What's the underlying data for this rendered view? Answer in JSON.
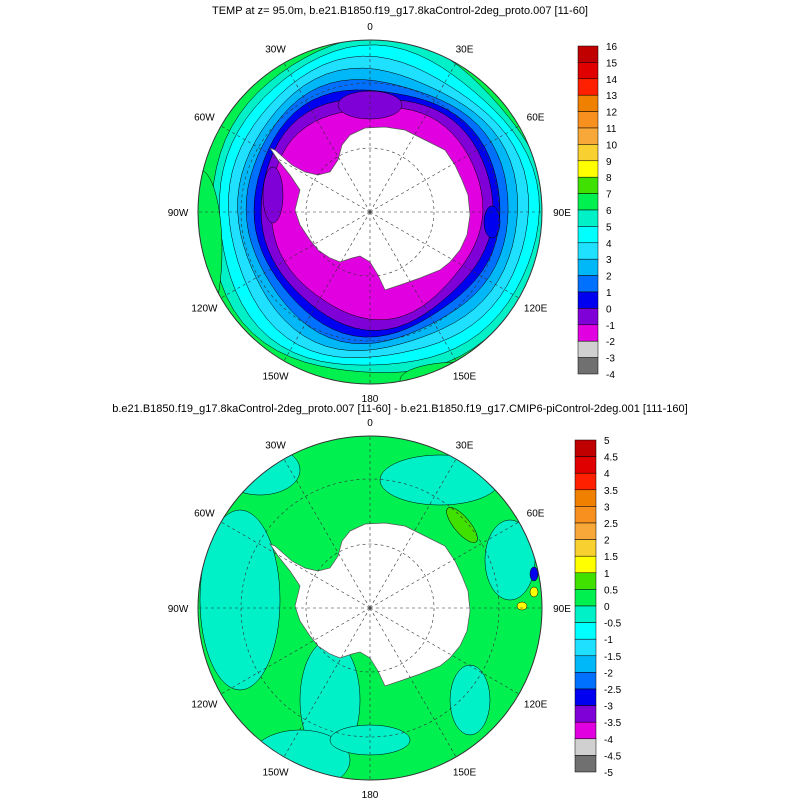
{
  "panels": [
    {
      "title": "TEMP at z=  95.0m, b.e21.B1850.f19_g17.8kaControl-2deg_proto.007 [11-60]",
      "colorbar_labels": [
        "16",
        "15",
        "14",
        "13",
        "12",
        "11",
        "10",
        "9",
        "8",
        "7",
        "6",
        "5",
        "4",
        "3",
        "2",
        "1",
        "0",
        "-1",
        "-2",
        "-3",
        "-4"
      ],
      "field": "temperature",
      "rings": [
        "#00f050",
        "#00f0c8",
        "#00ffff",
        "#20e0ff",
        "#00b8f8",
        "#0070ff",
        "#0000f0",
        "#8000d8",
        "#e000e0"
      ],
      "patches": [
        {
          "color": "#00f050",
          "where": "west-edge"
        },
        {
          "color": "#40e000",
          "where": "southeast-edge"
        },
        {
          "color": "#8000d8",
          "where": "weddell-gyre"
        }
      ]
    },
    {
      "title": "b.e21.B1850.f19_g17.8kaControl-2deg_proto.007 [11-60] - b.e21.B1850.f19_g17.CMIP6-piControl-2deg.001 [111-160]",
      "colorbar_labels": [
        "5",
        "4.5",
        "4",
        "3.5",
        "3",
        "2.5",
        "2",
        "1.5",
        "1",
        "0.5",
        "0",
        "-0.5",
        "-1",
        "-1.5",
        "-2",
        "-2.5",
        "-3",
        "-3.5",
        "-4",
        "-4.5",
        "-5"
      ],
      "field": "difference",
      "rings": [
        "#00f050"
      ],
      "patches": [
        {
          "color": "#00f0c8",
          "where": "scattered"
        },
        {
          "color": "#40e000",
          "where": "east-indian"
        },
        {
          "color": "#0000f0",
          "where": "kerguelen"
        }
      ]
    }
  ],
  "colorbar_colors": [
    "#c00000",
    "#e00000",
    "#ff2000",
    "#f08000",
    "#f89020",
    "#f8a838",
    "#f8d030",
    "#ffff00",
    "#40e000",
    "#00f050",
    "#00f0c8",
    "#00ffff",
    "#20e0ff",
    "#00b8f8",
    "#0070ff",
    "#0000f0",
    "#8000d8",
    "#e000e0",
    "#d0d0d0",
    "#707070"
  ],
  "longitude_labels": [
    "0",
    "30E",
    "60E",
    "90E",
    "120E",
    "150E",
    "180",
    "150W",
    "120W",
    "90W",
    "60W",
    "30W"
  ],
  "projection": "south polar stereographic"
}
